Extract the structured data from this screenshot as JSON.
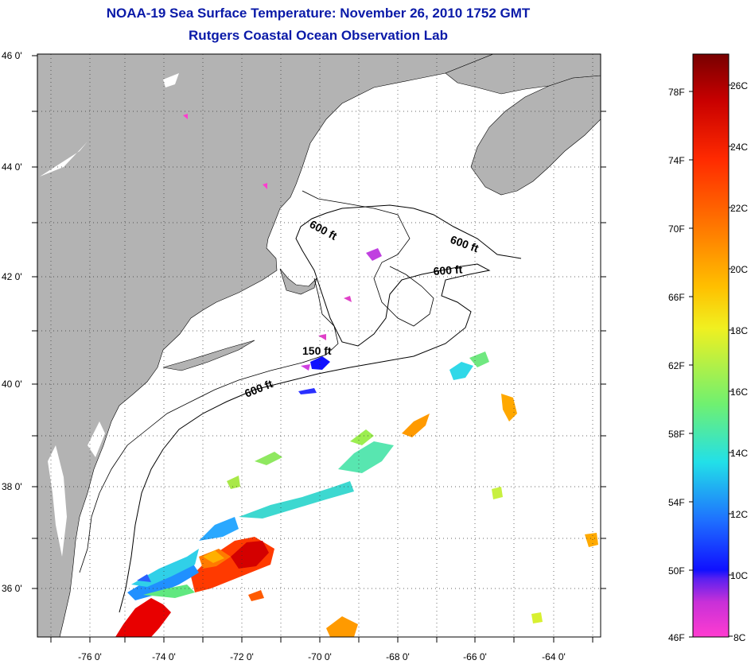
{
  "title": "NOAA-19 Sea Surface Temperature:  November 26, 2010 1752 GMT",
  "subtitle": "Rutgers Coastal Ocean Observation Lab",
  "map": {
    "latitude_ticks": [
      "46 0'",
      "44 0'",
      "42 0'",
      "40 0'",
      "38 0'",
      "36 0'"
    ],
    "longitude_ticks": [
      "-76 0'",
      "-74 0'",
      "-72 0'",
      "-70 0'",
      "-68 0'",
      "-66 0'",
      "-64 0'"
    ],
    "land_color": "#b3b3b3",
    "ocean_color": "#ffffff",
    "contour_labels": [
      {
        "text": "600 ft",
        "lon": -70.6,
        "lat": 42.75
      },
      {
        "text": "600 ft",
        "lon": -66.7,
        "lat": 42.5
      },
      {
        "text": "600 ft",
        "lon": -67.0,
        "lat": 42.1
      },
      {
        "text": "150 ft",
        "lon": -70.4,
        "lat": 40.6
      },
      {
        "text": "600 ft",
        "lon": -71.5,
        "lat": 39.9
      }
    ]
  },
  "colorbar": {
    "fahrenheit_labels": [
      "78F",
      "74F",
      "70F",
      "66F",
      "62F",
      "58F",
      "54F",
      "50F",
      "46F"
    ],
    "celsius_labels": [
      "26C",
      "24C",
      "22C",
      "20C",
      "18C",
      "16C",
      "14C",
      "12C",
      "10C",
      "8C"
    ],
    "range_c": [
      8,
      27
    ],
    "colors": [
      "#ff3cd0",
      "#9a30e0",
      "#1010ff",
      "#1e78ff",
      "#22e0e8",
      "#70f070",
      "#d8f030",
      "#ffd000",
      "#ff8000",
      "#ff2a00",
      "#c80000",
      "#780000"
    ]
  }
}
